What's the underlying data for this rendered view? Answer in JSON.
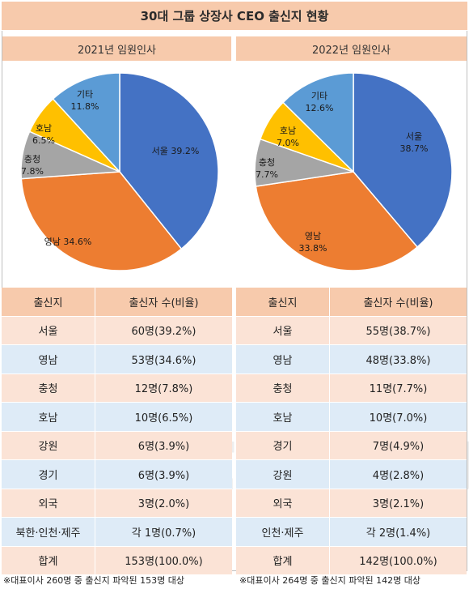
{
  "title": "30대 그룹 상장사 CEO 출신지 현황",
  "watermark": "datanews",
  "colors": {
    "header_bg": "#f7caac",
    "row_peach": "#fbe3d6",
    "row_blue": "#deebf7",
    "seoul": "#4472c4",
    "yeongnam": "#ed7d31",
    "chungcheong": "#a5a5a5",
    "honam": "#ffc000",
    "other": "#5b9bd5"
  },
  "chart_data": [
    {
      "type": "pie",
      "title": "2021년 임원인사",
      "slices": [
        {
          "label": "서울",
          "value": 39.2,
          "text": "서울 39.2%",
          "color": "#4472c4"
        },
        {
          "label": "영남",
          "value": 34.6,
          "text": "영남 34.6%",
          "color": "#ed7d31"
        },
        {
          "label": "충청",
          "value": 7.8,
          "text": "충청\n7.8%",
          "color": "#a5a5a5"
        },
        {
          "label": "호남",
          "value": 6.5,
          "text": "호남\n6.5%",
          "color": "#ffc000"
        },
        {
          "label": "기타",
          "value": 11.8,
          "text": "기타\n11.8%",
          "color": "#5b9bd5"
        }
      ]
    },
    {
      "type": "pie",
      "title": "2022년 임원인사",
      "slices": [
        {
          "label": "서울",
          "value": 38.7,
          "text": "서울\n38.7%",
          "color": "#4472c4"
        },
        {
          "label": "영남",
          "value": 33.8,
          "text": "영남\n33.8%",
          "color": "#ed7d31"
        },
        {
          "label": "충청",
          "value": 7.7,
          "text": "충청\n7.7%",
          "color": "#a5a5a5"
        },
        {
          "label": "호남",
          "value": 7.0,
          "text": "호남\n7.0%",
          "color": "#ffc000"
        },
        {
          "label": "기타",
          "value": 12.6,
          "text": "기타\n12.6%",
          "color": "#5b9bd5"
        }
      ]
    }
  ],
  "tables": [
    {
      "headers": [
        "출신지",
        "출신자 수(비율)"
      ],
      "rows": [
        [
          "서울",
          "60명(39.2%)"
        ],
        [
          "영남",
          "53명(34.6%)"
        ],
        [
          "충청",
          "12명(7.8%)"
        ],
        [
          "호남",
          "10명(6.5%)"
        ],
        [
          "강원",
          "6명(3.9%)"
        ],
        [
          "경기",
          "6명(3.9%)"
        ],
        [
          "외국",
          "3명(2.0%)"
        ],
        [
          "북한·인천·제주",
          "각 1명(0.7%)"
        ],
        [
          "합계",
          "153명(100.0%)"
        ]
      ],
      "note": "※대표이사 260명 중 출신지 파악된 153명 대상"
    },
    {
      "headers": [
        "출신지",
        "출신자 수(비율)"
      ],
      "rows": [
        [
          "서울",
          "55명(38.7%)"
        ],
        [
          "영남",
          "48명(33.8%)"
        ],
        [
          "충청",
          "11명(7.7%)"
        ],
        [
          "호남",
          "10명(7.0%)"
        ],
        [
          "경기",
          "7명(4.9%)"
        ],
        [
          "강원",
          "4명(2.8%)"
        ],
        [
          "외국",
          "3명(2.1%)"
        ],
        [
          "인천·제주",
          "각 2명(1.4%)"
        ],
        [
          "합계",
          "142명(100.0%)"
        ]
      ],
      "note": "※대표이사 264명 중 출신지 파악된 142명 대상"
    }
  ]
}
